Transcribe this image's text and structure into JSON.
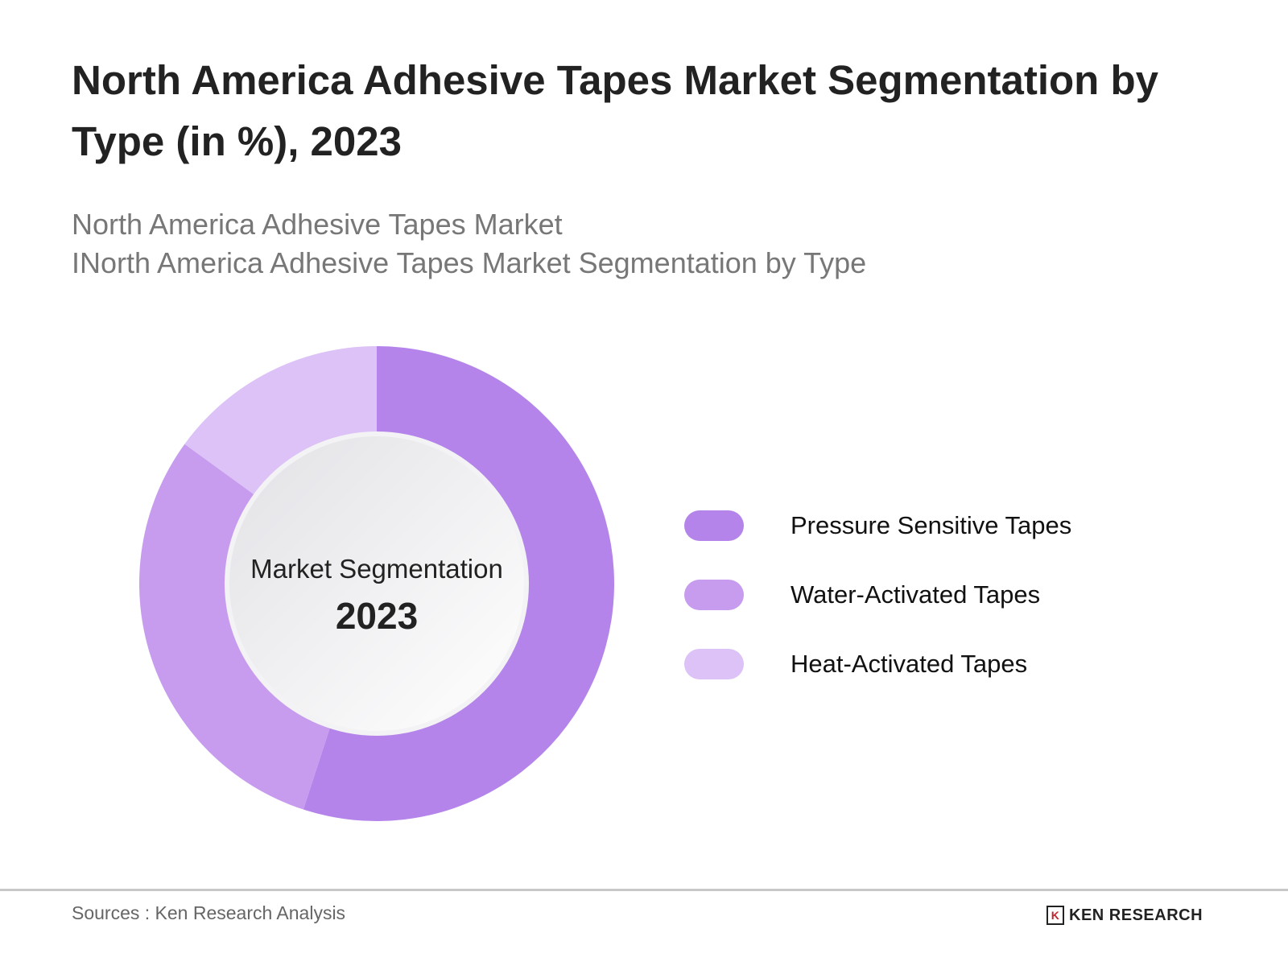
{
  "title": "North America Adhesive Tapes Market Segmentation by Type (in %), 2023",
  "subtitle_line1": "North America Adhesive Tapes Market",
  "subtitle_line2": "INorth America Adhesive Tapes Market Segmentation by Type",
  "center": {
    "label": "Market Segmentation",
    "year": "2023"
  },
  "chart_data": {
    "type": "pie",
    "variant": "donut",
    "categories": [
      "Pressure Sensitive Tapes",
      "Water-Activated Tapes",
      "Heat-Activated Tapes"
    ],
    "values": [
      55,
      30,
      15
    ],
    "colors": [
      "#b484ea",
      "#c79cee",
      "#dcc2f6"
    ],
    "legend_position": "right"
  },
  "footer": {
    "source": "Sources : Ken Research Analysis",
    "logo_text": "KEN RESEARCH"
  }
}
